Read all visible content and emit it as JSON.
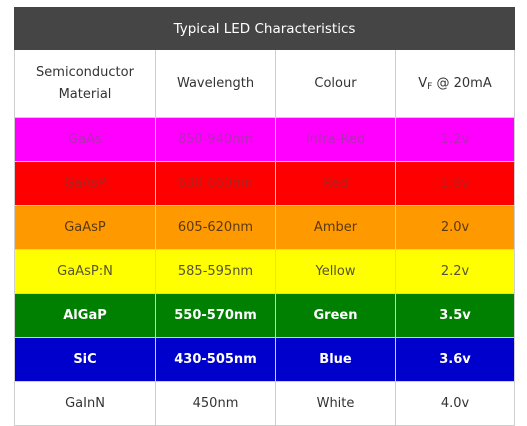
{
  "table": {
    "title": "Typical LED Characteristics",
    "headers": {
      "material_line1": "Semiconductor",
      "material_line2": "Material",
      "wavelength": "Wavelength",
      "colour": "Colour",
      "vf_main": "V",
      "vf_sub": "F",
      "vf_rest": " @ 20mA"
    },
    "rows": [
      {
        "material": "GaAs",
        "wavelength": "850-940nm",
        "colour": "Infra-Red",
        "vf": "1.2v",
        "bg": "#ff00ff",
        "fg": "#b52ab5",
        "bold": false
      },
      {
        "material": "GaAsP",
        "wavelength": "630-660nm",
        "colour": "Red",
        "vf": "1.8v",
        "bg": "#ff0000",
        "fg": "#b32020",
        "bold": false
      },
      {
        "material": "GaAsP",
        "wavelength": "605-620nm",
        "colour": "Amber",
        "vf": "2.0v",
        "bg": "#ff9900",
        "fg": "#5a3a10",
        "bold": false
      },
      {
        "material": "GaAsP:N",
        "wavelength": "585-595nm",
        "colour": "Yellow",
        "vf": "2.2v",
        "bg": "#ffff00",
        "fg": "#555533",
        "bold": false
      },
      {
        "material": "AlGaP",
        "wavelength": "550-570nm",
        "colour": "Green",
        "vf": "3.5v",
        "bg": "#008000",
        "fg": "#ffffff",
        "bold": true
      },
      {
        "material": "SiC",
        "wavelength": "430-505nm",
        "colour": "Blue",
        "vf": "3.6v",
        "bg": "#0000cc",
        "fg": "#ffffff",
        "bold": true
      },
      {
        "material": "GaInN",
        "wavelength": "450nm",
        "colour": "White",
        "vf": "4.0v",
        "bg": "#ffffff",
        "fg": "#333333",
        "bold": false
      }
    ]
  }
}
